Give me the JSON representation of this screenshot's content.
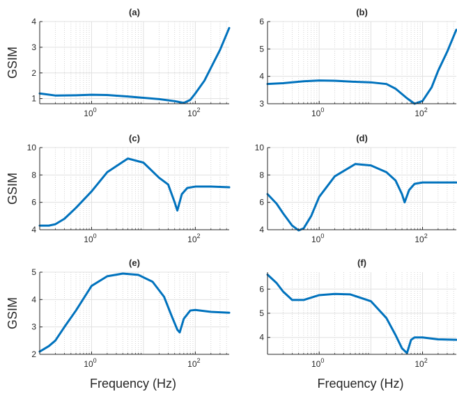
{
  "chart_data": [
    {
      "type": "line",
      "title": "(a)",
      "ylabel": "GSIM",
      "xlabel": "",
      "x_scale": "log",
      "xlim": [
        0.1,
        450
      ],
      "ylim": [
        0.8,
        4
      ],
      "yticks": [
        "1",
        "2",
        "3",
        "4"
      ],
      "xticks": [
        "10^0",
        "10^2"
      ],
      "line_color": "#0072bd",
      "grid": true,
      "x": [
        0.1,
        0.2,
        0.5,
        1,
        2,
        5,
        10,
        20,
        40,
        60,
        80,
        100,
        150,
        200,
        300,
        450
      ],
      "y": [
        1.2,
        1.12,
        1.13,
        1.15,
        1.14,
        1.08,
        1.03,
        0.98,
        0.9,
        0.83,
        0.95,
        1.2,
        1.7,
        2.2,
        2.9,
        3.75
      ]
    },
    {
      "type": "line",
      "title": "(b)",
      "ylabel": "",
      "xlabel": "",
      "x_scale": "log",
      "xlim": [
        0.1,
        450
      ],
      "ylim": [
        3,
        6
      ],
      "yticks": [
        "3",
        "4",
        "5",
        "6"
      ],
      "xticks": [
        "10^0",
        "10^2"
      ],
      "line_color": "#0072bd",
      "grid": true,
      "x": [
        0.1,
        0.2,
        0.5,
        1,
        2,
        5,
        10,
        20,
        30,
        50,
        70,
        100,
        150,
        200,
        300,
        450
      ],
      "y": [
        3.72,
        3.75,
        3.82,
        3.85,
        3.84,
        3.8,
        3.78,
        3.72,
        3.55,
        3.2,
        3.0,
        3.1,
        3.6,
        4.2,
        4.9,
        5.7
      ]
    },
    {
      "type": "line",
      "title": "(c)",
      "ylabel": "GSIM",
      "xlabel": "",
      "x_scale": "log",
      "xlim": [
        0.1,
        450
      ],
      "ylim": [
        4,
        10
      ],
      "yticks": [
        "4",
        "6",
        "8",
        "10"
      ],
      "xticks": [
        "10^0",
        "10^2"
      ],
      "line_color": "#0072bd",
      "grid": true,
      "x": [
        0.1,
        0.15,
        0.2,
        0.3,
        0.5,
        1,
        2,
        5,
        10,
        20,
        30,
        40,
        45,
        55,
        70,
        100,
        200,
        450
      ],
      "y": [
        4.3,
        4.3,
        4.4,
        4.8,
        5.6,
        6.8,
        8.2,
        9.2,
        8.9,
        7.8,
        7.3,
        6.0,
        5.4,
        6.6,
        7.05,
        7.15,
        7.15,
        7.1
      ]
    },
    {
      "type": "line",
      "title": "(d)",
      "ylabel": "",
      "xlabel": "",
      "x_scale": "log",
      "xlim": [
        0.1,
        450
      ],
      "ylim": [
        4,
        10
      ],
      "yticks": [
        "4",
        "6",
        "8",
        "10"
      ],
      "xticks": [
        "10^0",
        "10^2"
      ],
      "line_color": "#0072bd",
      "grid": true,
      "x": [
        0.1,
        0.15,
        0.2,
        0.3,
        0.4,
        0.5,
        0.7,
        1,
        2,
        5,
        10,
        20,
        30,
        40,
        45,
        55,
        70,
        100,
        200,
        450
      ],
      "y": [
        6.6,
        5.9,
        5.2,
        4.3,
        3.95,
        4.1,
        5.0,
        6.4,
        7.9,
        8.8,
        8.7,
        8.2,
        7.6,
        6.6,
        6.0,
        6.9,
        7.35,
        7.45,
        7.45,
        7.45
      ]
    },
    {
      "type": "line",
      "title": "(e)",
      "ylabel": "GSIM",
      "xlabel": "Frequency (Hz)",
      "x_scale": "log",
      "xlim": [
        0.1,
        450
      ],
      "ylim": [
        2,
        5
      ],
      "yticks": [
        "2",
        "3",
        "4",
        "5"
      ],
      "xticks": [
        "10^0",
        "10^2"
      ],
      "line_color": "#0072bd",
      "grid": true,
      "x": [
        0.1,
        0.15,
        0.2,
        0.3,
        0.5,
        1,
        2,
        4,
        8,
        15,
        25,
        35,
        45,
        50,
        60,
        80,
        100,
        200,
        450
      ],
      "y": [
        2.1,
        2.3,
        2.5,
        3.0,
        3.6,
        4.5,
        4.85,
        4.95,
        4.9,
        4.65,
        4.1,
        3.4,
        2.9,
        2.8,
        3.3,
        3.6,
        3.62,
        3.55,
        3.52
      ]
    },
    {
      "type": "line",
      "title": "(f)",
      "ylabel": "",
      "xlabel": "Frequency (Hz)",
      "x_scale": "log",
      "xlim": [
        0.1,
        450
      ],
      "ylim": [
        3.3,
        6.7
      ],
      "yticks": [
        "4",
        "5",
        "6"
      ],
      "xticks": [
        "10^0",
        "10^2"
      ],
      "line_color": "#0072bd",
      "grid": true,
      "x": [
        0.1,
        0.15,
        0.2,
        0.3,
        0.5,
        1,
        2,
        4,
        10,
        20,
        30,
        40,
        50,
        60,
        70,
        100,
        200,
        450
      ],
      "y": [
        6.6,
        6.25,
        5.9,
        5.55,
        5.55,
        5.75,
        5.8,
        5.78,
        5.5,
        4.8,
        4.1,
        3.55,
        3.35,
        3.9,
        4.0,
        4.0,
        3.92,
        3.9
      ]
    }
  ]
}
